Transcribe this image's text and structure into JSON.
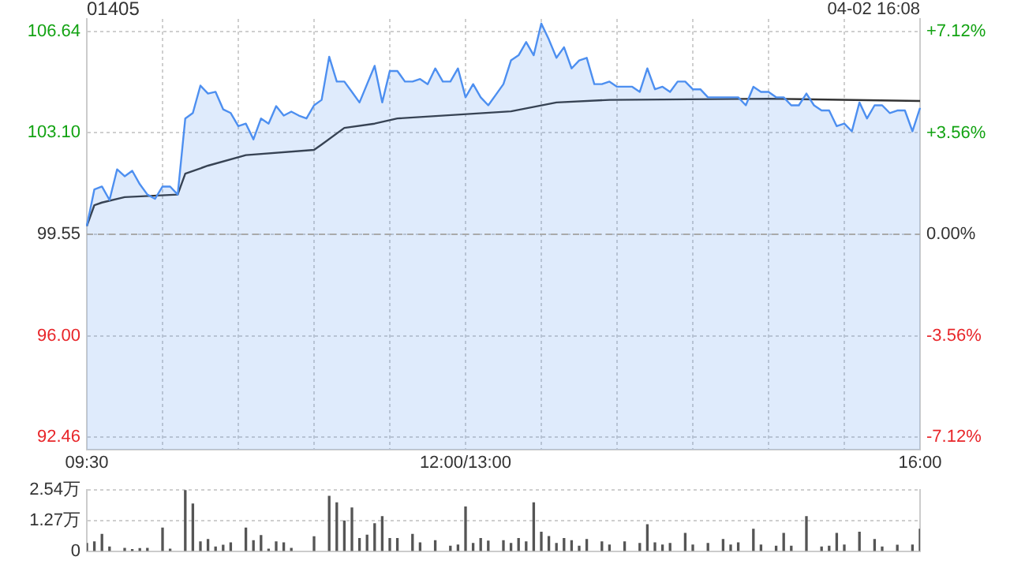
{
  "chart_data": {
    "type": "area",
    "title": "01405",
    "annotations": [
      "04-02 16:08"
    ],
    "categories": [
      "09:30",
      null,
      null,
      null,
      null,
      null,
      null,
      null,
      null,
      null,
      null,
      null,
      null,
      null,
      null,
      null,
      null,
      null,
      null,
      null,
      null,
      null,
      null,
      null,
      null,
      null,
      null,
      null,
      null,
      null,
      null,
      null,
      null,
      null,
      null,
      null,
      null,
      null,
      null,
      null,
      null,
      null,
      null,
      null,
      null,
      null,
      null,
      null,
      null,
      null,
      "12:00/13:00",
      null,
      null,
      null,
      null,
      null,
      null,
      null,
      null,
      null,
      null,
      null,
      null,
      null,
      null,
      null,
      null,
      null,
      null,
      null,
      null,
      null,
      null,
      null,
      null,
      null,
      null,
      null,
      null,
      null,
      null,
      null,
      null,
      null,
      null,
      null,
      null,
      null,
      null,
      null,
      null,
      null,
      null,
      null,
      null,
      null,
      null,
      null,
      null,
      null,
      null,
      null,
      null,
      null,
      null,
      null,
      null,
      null,
      null,
      null,
      "16:00"
    ],
    "ylim": [
      92.02,
      107.08
    ],
    "yticks": [
      {
        "value": 92.46,
        "label": "92.46"
      },
      {
        "value": 96,
        "label": "96.00"
      },
      {
        "value": 99.55,
        "label": "99.55"
      },
      {
        "value": 103.1,
        "label": "103.10"
      },
      {
        "value": 106.64,
        "label": "106.64"
      }
    ],
    "y2lim": [
      -7.56,
      7.56
    ],
    "y2ticks": [
      {
        "value": -7.12,
        "label": "-7.12%"
      },
      {
        "value": -3.56,
        "label": "-3.56%"
      },
      {
        "value": 0,
        "label": "0.00%"
      },
      {
        "value": 3.56,
        "label": "+3.56%"
      },
      {
        "value": 7.12,
        "label": "+7.12%"
      }
    ],
    "y3lim": [
      0,
      2.54
    ],
    "y3ticks": [
      0,
      {
        "value": 1.27,
        "label": "1.27万"
      },
      {
        "value": 2.54,
        "label": "2.54万"
      }
    ],
    "grid": true,
    "legend": false,
    "marker": "none",
    "ref_lines": [
      {
        "axis": "y",
        "value": 99.55,
        "color": "#aaaaaa",
        "line_style": "dashed"
      }
    ],
    "series": [
      {
        "type": "area",
        "color": "#4d8ff0",
        "values": [
          99.84,
          101.12,
          101.22,
          100.75,
          101.82,
          101.58,
          101.77,
          101.3,
          100.94,
          100.79,
          101.22,
          101.22,
          100.94,
          103.6,
          103.79,
          104.75,
          104.47,
          104.53,
          103.92,
          103.79,
          103.33,
          103.42,
          102.87,
          103.6,
          103.42,
          104.03,
          103.7,
          103.84,
          103.7,
          103.6,
          104.06,
          104.25,
          105.76,
          104.89,
          104.89,
          104.53,
          104.16,
          104.8,
          105.44,
          104.16,
          105.26,
          105.26,
          104.89,
          104.89,
          104.98,
          104.8,
          105.35,
          104.89,
          104.89,
          105.35,
          104.34,
          104.8,
          104.34,
          104.06,
          104.43,
          104.8,
          105.63,
          105.81,
          106.27,
          105.81,
          106.92,
          106.36,
          105.72,
          106.09,
          105.35,
          105.63,
          105.72,
          104.8,
          104.8,
          104.89,
          104.71,
          104.71,
          104.71,
          104.53,
          105.35,
          104.62,
          104.71,
          104.53,
          104.89,
          104.89,
          104.62,
          104.62,
          104.34,
          104.34,
          104.34,
          104.34,
          104.34,
          104.06,
          104.71,
          104.53,
          104.53,
          104.34,
          104.34,
          104.06,
          104.06,
          104.47,
          104.06,
          103.88,
          103.88,
          103.33,
          103.42,
          103.15,
          104.16,
          103.6,
          104.06,
          104.06,
          103.79,
          103.88,
          103.88,
          103.15,
          103.97
        ]
      },
      {
        "type": "line",
        "color": "#333333",
        "values": [
          99.84,
          100.57,
          100.66,
          null,
          null,
          100.85,
          null,
          null,
          null,
          null,
          null,
          null,
          100.94,
          101.67,
          null,
          null,
          101.95,
          null,
          null,
          null,
          null,
          102.32,
          null,
          null,
          null,
          null,
          null,
          null,
          null,
          null,
          102.5,
          102.69,
          null,
          null,
          103.27,
          null,
          null,
          null,
          103.42,
          null,
          null,
          103.6,
          null,
          null,
          null,
          null,
          null,
          null,
          null,
          null,
          null,
          null,
          null,
          null,
          null,
          null,
          103.85,
          null,
          null,
          null,
          null,
          null,
          104.16,
          null,
          null,
          null,
          null,
          null,
          null,
          104.25,
          null,
          null,
          null,
          null,
          null,
          null,
          null,
          null,
          null,
          null,
          null,
          null,
          null,
          null,
          null,
          null,
          null,
          null,
          null,
          null,
          104.29,
          null,
          null,
          null,
          null,
          null,
          null,
          null,
          null,
          null,
          null,
          null,
          null,
          null,
          null,
          null,
          null,
          null,
          null,
          null,
          104.21
        ]
      },
      {
        "type": "bar",
        "axis": "y3",
        "color": "#555555",
        "values": [
          0.32,
          0.39,
          0.7,
          0.18,
          null,
          0.12,
          0.07,
          0.11,
          0.12,
          null,
          0.96,
          0.09,
          null,
          2.54,
          1.96,
          0.39,
          0.49,
          0.18,
          0.25,
          0.35,
          null,
          0.96,
          0.44,
          0.65,
          0.09,
          0.39,
          0.35,
          0.12,
          null,
          null,
          0.6,
          null,
          2.28,
          2.01,
          1.26,
          1.8,
          0.53,
          0.67,
          1.14,
          1.44,
          0.53,
          0.53,
          null,
          0.7,
          0.35,
          null,
          0.44,
          null,
          0.21,
          0.26,
          1.84,
          0.32,
          0.53,
          0.42,
          null,
          0.44,
          0.32,
          0.53,
          0.39,
          2.01,
          0.79,
          0.61,
          0.32,
          0.53,
          0.44,
          0.21,
          0.49,
          null,
          0.39,
          0.26,
          null,
          0.39,
          null,
          0.32,
          1.1,
          0.35,
          0.26,
          0.32,
          null,
          0.74,
          0.26,
          null,
          0.32,
          null,
          0.49,
          0.26,
          0.35,
          null,
          0.91,
          0.26,
          null,
          0.21,
          0.74,
          0.21,
          null,
          1.44,
          null,
          0.18,
          0.21,
          0.74,
          0.26,
          null,
          0.79,
          null,
          0.49,
          0.18,
          null,
          0.25,
          null,
          0.26,
          0.91
        ]
      }
    ]
  }
}
